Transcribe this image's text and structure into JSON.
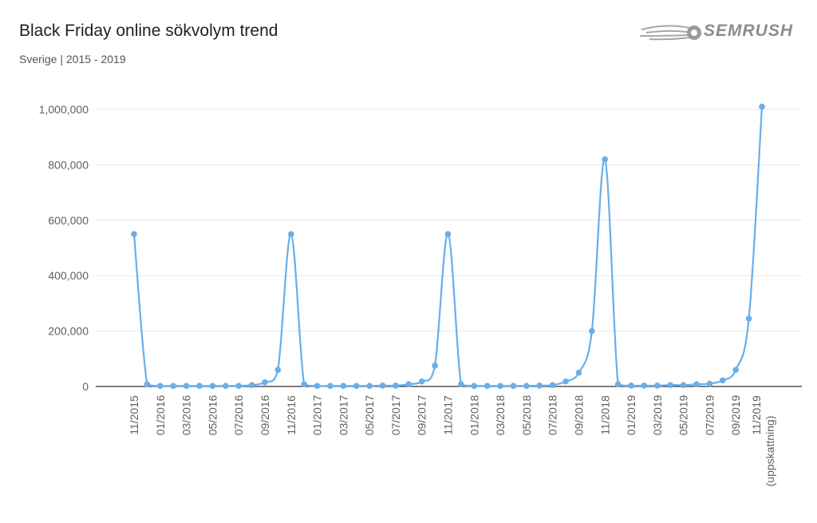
{
  "header": {
    "title": "Black Friday online sökvolym trend",
    "subtitle": "Sverige | 2015 - 2019",
    "brand": "SEMRUSH"
  },
  "colors": {
    "line": "#6aaeea",
    "axis": "#333333",
    "grid": "#e6e6e6",
    "text": "#5f5f5f"
  },
  "chart_data": {
    "type": "line",
    "title": "Black Friday online sökvolym trend",
    "subtitle": "Sverige | 2015 - 2019",
    "xlabel": "",
    "ylabel": "",
    "ylim": [
      0,
      1000000
    ],
    "y_ticks": [
      0,
      200000,
      400000,
      600000,
      800000,
      1000000
    ],
    "y_tick_labels": [
      "0",
      "200,000",
      "400,000",
      "600,000",
      "800,000",
      "1,000,000"
    ],
    "grid": true,
    "legend": "none",
    "x": [
      "11/2015",
      "12/2015",
      "01/2016",
      "02/2016",
      "03/2016",
      "04/2016",
      "05/2016",
      "06/2016",
      "07/2016",
      "08/2016",
      "09/2016",
      "10/2016",
      "11/2016",
      "12/2016",
      "01/2017",
      "02/2017",
      "03/2017",
      "04/2017",
      "05/2017",
      "06/2017",
      "07/2017",
      "08/2017",
      "09/2017",
      "10/2017",
      "11/2017",
      "12/2017",
      "01/2018",
      "02/2018",
      "03/2018",
      "04/2018",
      "05/2018",
      "06/2018",
      "07/2018",
      "08/2018",
      "09/2018",
      "10/2018",
      "11/2018",
      "12/2018",
      "01/2019",
      "02/2019",
      "03/2019",
      "04/2019",
      "05/2019",
      "06/2019",
      "07/2019",
      "08/2019",
      "09/2019",
      "10/2019",
      "11/2019"
    ],
    "x_tick_labels": [
      "11/2015",
      "01/2016",
      "03/2016",
      "05/2016",
      "07/2016",
      "09/2016",
      "11/2016",
      "01/2017",
      "03/2017",
      "05/2017",
      "07/2017",
      "09/2017",
      "11/2017",
      "01/2018",
      "03/2018",
      "05/2018",
      "07/2018",
      "09/2018",
      "11/2018",
      "01/2019",
      "03/2019",
      "05/2019",
      "07/2019",
      "09/2019",
      "11/2019"
    ],
    "x_tick_label_last_line2": "(uppskattning)",
    "series": [
      {
        "values": [
          550000,
          8000,
          2000,
          2000,
          2000,
          2000,
          2000,
          2000,
          2000,
          5000,
          15000,
          60000,
          550000,
          8000,
          2000,
          2000,
          2000,
          2000,
          2000,
          3000,
          3000,
          8000,
          18000,
          75000,
          550000,
          8000,
          2000,
          2000,
          2000,
          2000,
          2000,
          3000,
          5000,
          18000,
          50000,
          200000,
          820000,
          8000,
          3000,
          3000,
          3000,
          5000,
          5000,
          8000,
          10000,
          22000,
          60000,
          245000,
          1010000
        ]
      }
    ]
  }
}
